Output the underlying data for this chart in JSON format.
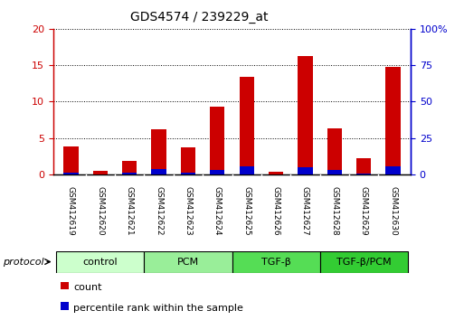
{
  "title": "GDS4574 / 239229_at",
  "samples": [
    "GSM412619",
    "GSM412620",
    "GSM412621",
    "GSM412622",
    "GSM412623",
    "GSM412624",
    "GSM412625",
    "GSM412626",
    "GSM412627",
    "GSM412628",
    "GSM412629",
    "GSM412630"
  ],
  "count_values": [
    3.9,
    0.5,
    1.8,
    6.2,
    3.7,
    9.3,
    13.4,
    0.4,
    16.2,
    6.3,
    2.2,
    14.8
  ],
  "percentile_values": [
    1.0,
    0.0,
    1.2,
    3.8,
    1.2,
    3.1,
    5.7,
    0.0,
    5.0,
    2.8,
    0.4,
    5.5
  ],
  "left_ylim": [
    0,
    20
  ],
  "left_yticks": [
    0,
    5,
    10,
    15,
    20
  ],
  "right_ylim": [
    0,
    100
  ],
  "right_yticks": [
    0,
    25,
    50,
    75,
    100
  ],
  "right_yticklabels": [
    "0",
    "25",
    "50",
    "75",
    "100%"
  ],
  "bar_color_red": "#cc0000",
  "bar_color_blue": "#0000cc",
  "bar_width": 0.5,
  "groups": [
    {
      "label": "control",
      "start": 0,
      "end": 3,
      "color": "#ccffcc"
    },
    {
      "label": "PCM",
      "start": 3,
      "end": 6,
      "color": "#99ee99"
    },
    {
      "label": "TGF-β",
      "start": 6,
      "end": 9,
      "color": "#55dd55"
    },
    {
      "label": "TGF-β/PCM",
      "start": 9,
      "end": 12,
      "color": "#33cc33"
    }
  ],
  "left_axis_color": "#cc0000",
  "right_axis_color": "#0000cc",
  "bg_color": "#ffffff",
  "tick_label_bg": "#cccccc",
  "legend_count_label": "count",
  "legend_percentile_label": "percentile rank within the sample"
}
